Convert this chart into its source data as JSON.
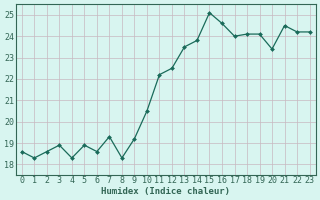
{
  "x": [
    0,
    1,
    2,
    3,
    4,
    5,
    6,
    7,
    8,
    9,
    10,
    11,
    12,
    13,
    14,
    15,
    16,
    17,
    18,
    19,
    20,
    21,
    22,
    23
  ],
  "y": [
    18.6,
    18.3,
    18.6,
    18.9,
    18.3,
    18.9,
    18.6,
    19.3,
    18.3,
    19.2,
    20.5,
    22.2,
    22.5,
    23.5,
    23.8,
    25.1,
    24.6,
    24.0,
    24.1,
    24.1,
    23.4,
    24.5,
    24.2,
    24.2
  ],
  "xlabel": "Humidex (Indice chaleur)",
  "ylim": [
    17.5,
    25.5
  ],
  "xlim": [
    -0.5,
    23.5
  ],
  "yticks": [
    18,
    19,
    20,
    21,
    22,
    23,
    24,
    25
  ],
  "xticks": [
    0,
    1,
    2,
    3,
    4,
    5,
    6,
    7,
    8,
    9,
    10,
    11,
    12,
    13,
    14,
    15,
    16,
    17,
    18,
    19,
    20,
    21,
    22,
    23
  ],
  "line_color": "#1a6b5a",
  "marker_color": "#1a6b5a",
  "bg_color": "#d8f5f0",
  "grid_color": "#c8b8c0",
  "axis_color": "#336655",
  "xlabel_fontsize": 6.5,
  "tick_fontsize": 6,
  "marker": "D",
  "markersize": 2.0,
  "linewidth": 0.9
}
